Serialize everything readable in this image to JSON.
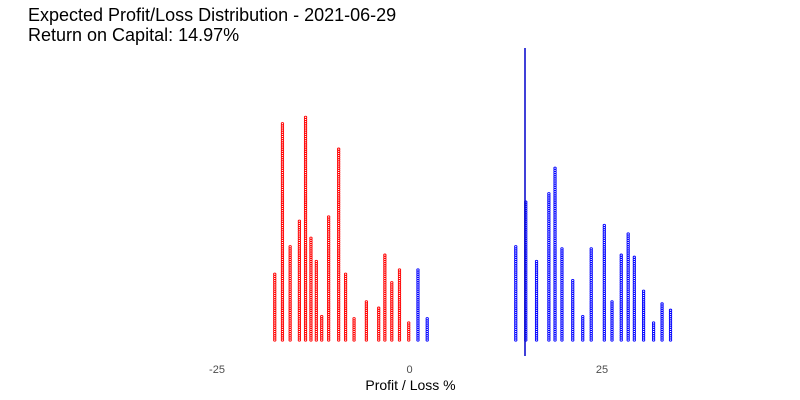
{
  "chart_data": {
    "type": "dot_histogram",
    "title": "Expected Profit/Loss Distribution - 2021-06-29",
    "subtitle": "Return on Capital: 14.97%",
    "xlabel": "Profit / Loss %",
    "ylabel": "",
    "xlim": [
      -25,
      55
    ],
    "x_ticks": [
      -25,
      0,
      25
    ],
    "reference_line_x": 15,
    "grid": false,
    "legend": "none",
    "colors": {
      "loss": "#ff0000",
      "profit": "#0000ff"
    },
    "series": [
      {
        "color_key": "loss",
        "x": [
          -17.5,
          -16.5,
          -15.5,
          -14.3,
          -13.5,
          -12.8,
          -12.1,
          -11.4,
          -10.5,
          -9.2,
          -8.3,
          -7.2,
          -5.6,
          -4.0,
          -3.2,
          -2.3,
          -1.3,
          -0.1
        ],
        "counts": [
          32,
          103,
          45,
          57,
          106,
          49,
          38,
          12,
          59,
          91,
          32,
          11,
          19,
          16,
          41,
          28,
          34,
          9
        ]
      },
      {
        "color_key": "profit",
        "x": [
          1.1,
          2.3,
          13.8,
          15.1,
          16.5,
          18.1,
          18.9,
          19.8,
          21.2,
          22.5,
          23.6,
          25.3,
          26.3,
          27.5,
          28.4,
          29.2,
          30.4,
          31.7,
          32.8,
          33.9
        ],
        "counts": [
          34,
          11,
          45,
          66,
          38,
          70,
          82,
          44,
          29,
          12,
          44,
          55,
          19,
          41,
          51,
          40,
          24,
          9,
          18,
          15
        ]
      }
    ]
  }
}
